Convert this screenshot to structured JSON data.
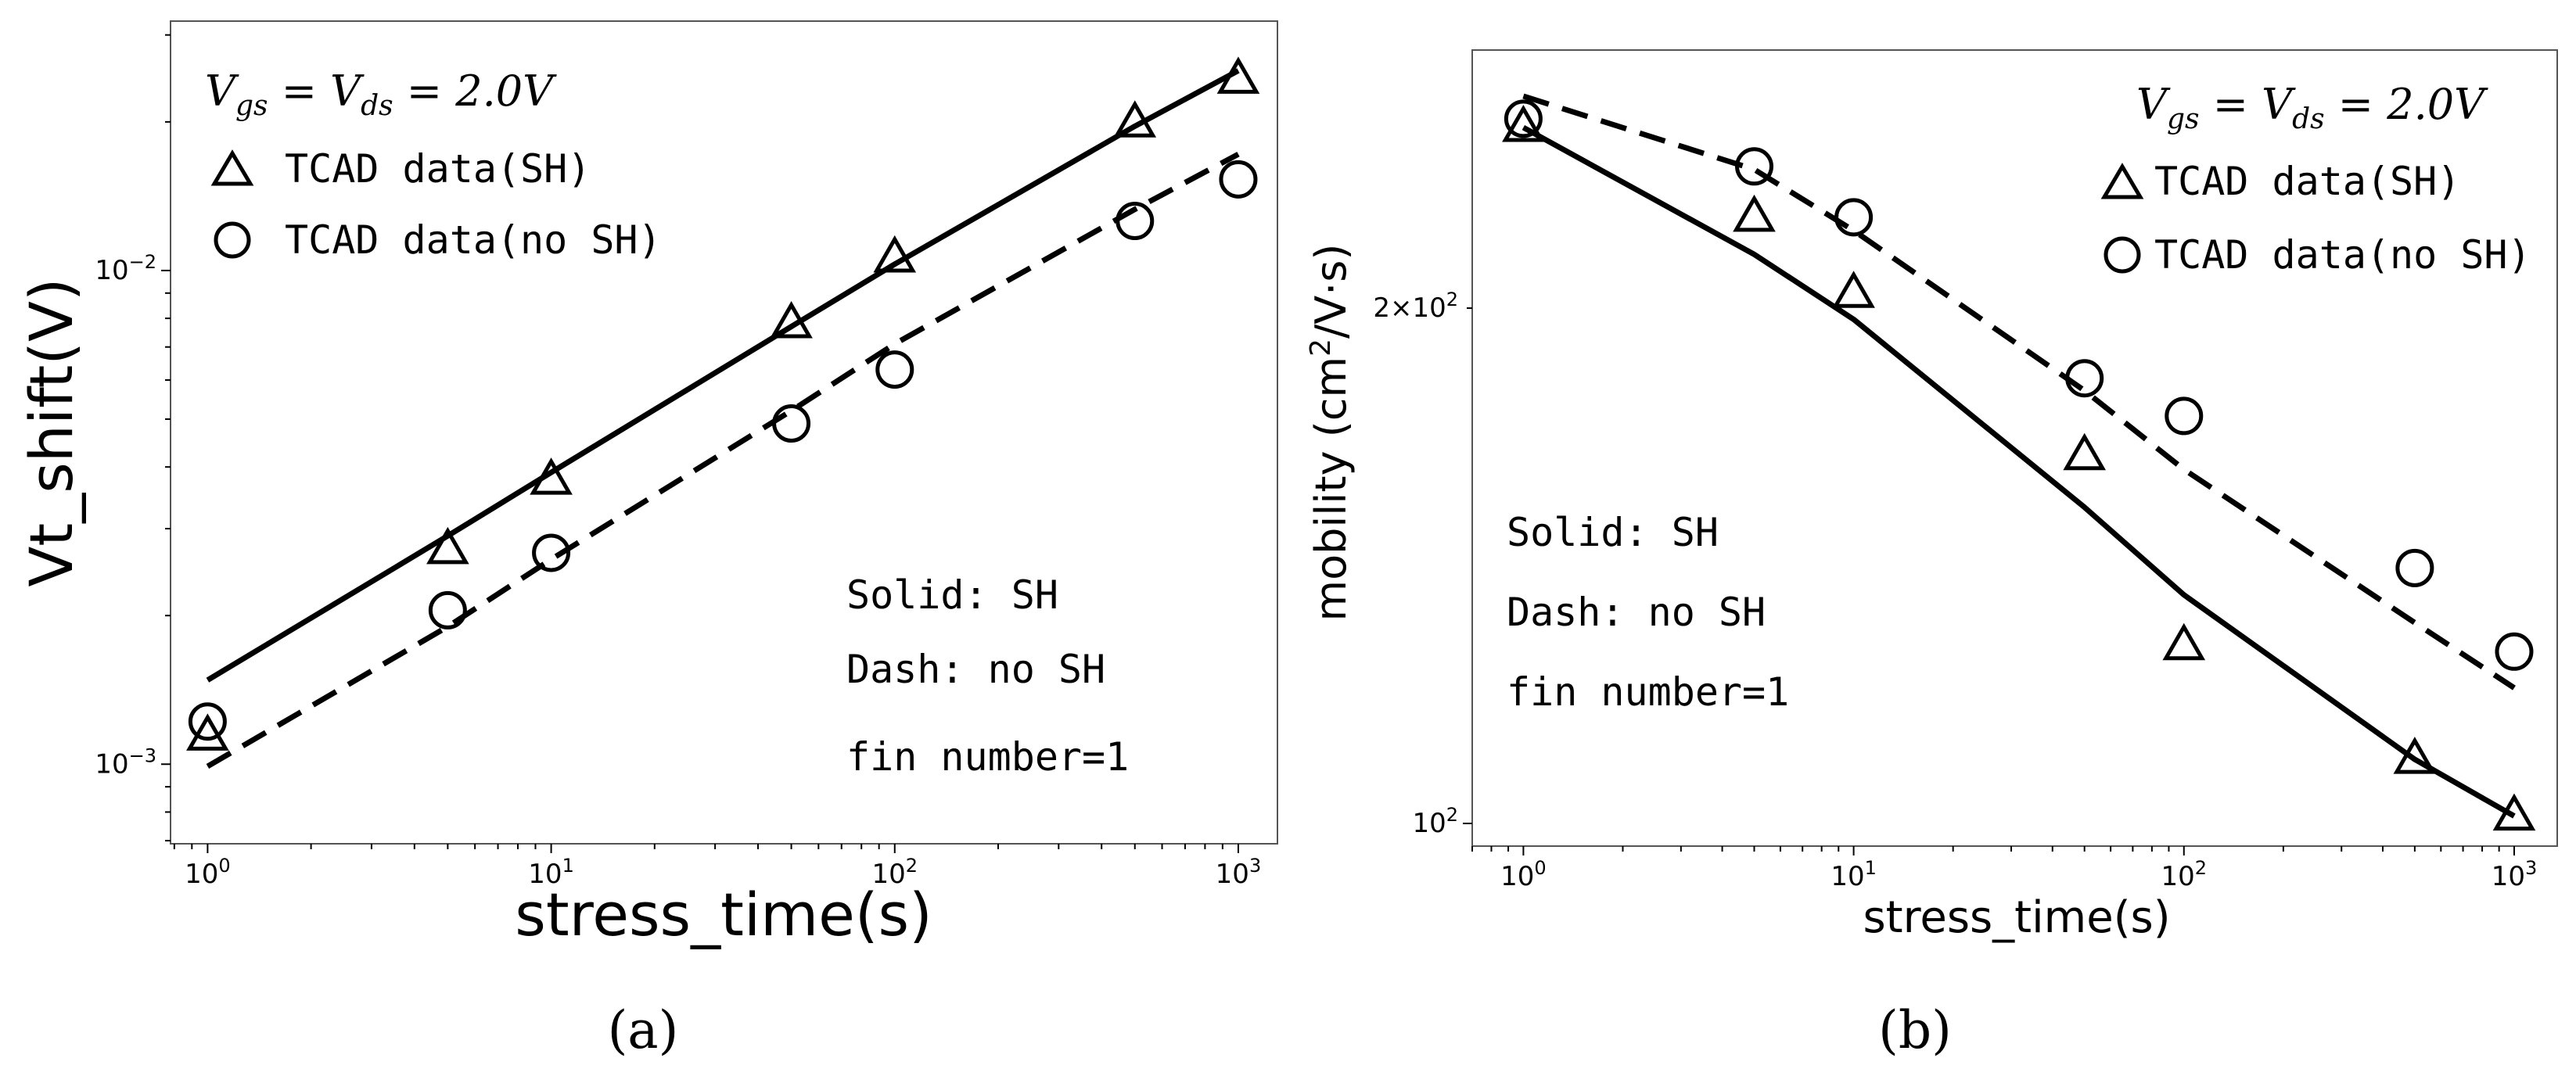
{
  "chart_data": [
    {
      "type": "line",
      "caption": "(a)",
      "xlabel": "stress_time(s)",
      "ylabel": "Vt_shift(V)",
      "xscale": "log",
      "yscale": "log",
      "xlim": [
        0.78,
        1300
      ],
      "ylim": [
        0.00069,
        0.032
      ],
      "xticks": [
        {
          "value": 1,
          "exp": "0"
        },
        {
          "value": 10,
          "exp": "1"
        },
        {
          "value": 100,
          "exp": "2"
        },
        {
          "value": 1000,
          "exp": "3"
        }
      ],
      "yticks": [
        {
          "value": 0.001,
          "exp": "−3"
        },
        {
          "value": 0.01,
          "exp": "−2"
        }
      ],
      "condition": {
        "lhs": "V",
        "lhs_sub": "gs",
        "mid": "V",
        "mid_sub": "ds",
        "rhs": "2.0V"
      },
      "legend_position": "top-left",
      "series": [
        {
          "name": "TCAD data(SH)",
          "kind": "marker",
          "marker": "triangle",
          "x": [
            1,
            5,
            10,
            50,
            100,
            500,
            1000
          ],
          "y": [
            0.00114,
            0.00272,
            0.00376,
            0.0078,
            0.0106,
            0.0199,
            0.0244
          ]
        },
        {
          "name": "TCAD data(no SH)",
          "kind": "marker",
          "marker": "circle",
          "x": [
            1,
            5,
            10,
            50,
            100,
            500,
            1000
          ],
          "y": [
            0.00122,
            0.00205,
            0.00268,
            0.0049,
            0.0063,
            0.0126,
            0.0153
          ]
        },
        {
          "kind": "line",
          "style": "solid",
          "x": [
            1,
            5,
            10,
            50,
            100,
            500,
            1000
          ],
          "y": [
            0.00148,
            0.0029,
            0.0039,
            0.0077,
            0.0103,
            0.0196,
            0.0254
          ]
        },
        {
          "kind": "line",
          "style": "dashed",
          "x": [
            1,
            5,
            10,
            50,
            100,
            500,
            1000
          ],
          "y": [
            0.00099,
            0.0019,
            0.0026,
            0.0052,
            0.0071,
            0.0133,
            0.0172
          ]
        }
      ],
      "annotations": [
        "Solid: SH",
        "Dash: no SH",
        "fin number=1"
      ]
    },
    {
      "type": "line",
      "caption": "(b)",
      "xlabel": "stress_time(s)",
      "ylabel": "mobility (cm",
      "ylabel_sup": "2",
      "ylabel_tail": "/V·s)",
      "xscale": "log",
      "yscale": "log",
      "xlim": [
        0.7,
        1350
      ],
      "ylim": [
        97,
        283
      ],
      "xticks": [
        {
          "value": 1,
          "exp": "0"
        },
        {
          "value": 10,
          "exp": "1"
        },
        {
          "value": 100,
          "exp": "2"
        },
        {
          "value": 1000,
          "exp": "3"
        }
      ],
      "yticks": [
        {
          "value": 100,
          "mant": "",
          "exp": "2"
        },
        {
          "value": 200,
          "mant": "2×",
          "exp": "2"
        }
      ],
      "condition": {
        "lhs": "V",
        "lhs_sub": "gs",
        "mid": "V",
        "mid_sub": "ds",
        "rhs": "2.0V"
      },
      "legend_position": "top-right",
      "series": [
        {
          "name": "TCAD data(SH)",
          "kind": "marker",
          "marker": "triangle",
          "x": [
            1,
            5,
            10,
            50,
            100,
            500,
            1000
          ],
          "y": [
            255,
            226,
            204,
            164,
            127,
            109,
            101
          ]
        },
        {
          "name": "TCAD data(no SH)",
          "kind": "marker",
          "marker": "circle",
          "x": [
            1,
            5,
            10,
            50,
            100,
            500,
            1000
          ],
          "y": [
            258,
            242,
            226,
            182,
            173,
            141,
            126
          ]
        },
        {
          "kind": "line",
          "style": "solid",
          "x": [
            1,
            5,
            10,
            50,
            100,
            500,
            1000
          ],
          "y": [
            255,
            215,
            197,
            153,
            136,
            109,
            101
          ]
        },
        {
          "kind": "line",
          "style": "dashed",
          "x": [
            1,
            5,
            10,
            50,
            100,
            500,
            1000
          ],
          "y": [
            266,
            241,
            222,
            179,
            161,
            131,
            120
          ]
        }
      ],
      "annotations": [
        "Solid: SH",
        "Dash: no SH",
        "fin number=1"
      ]
    }
  ]
}
